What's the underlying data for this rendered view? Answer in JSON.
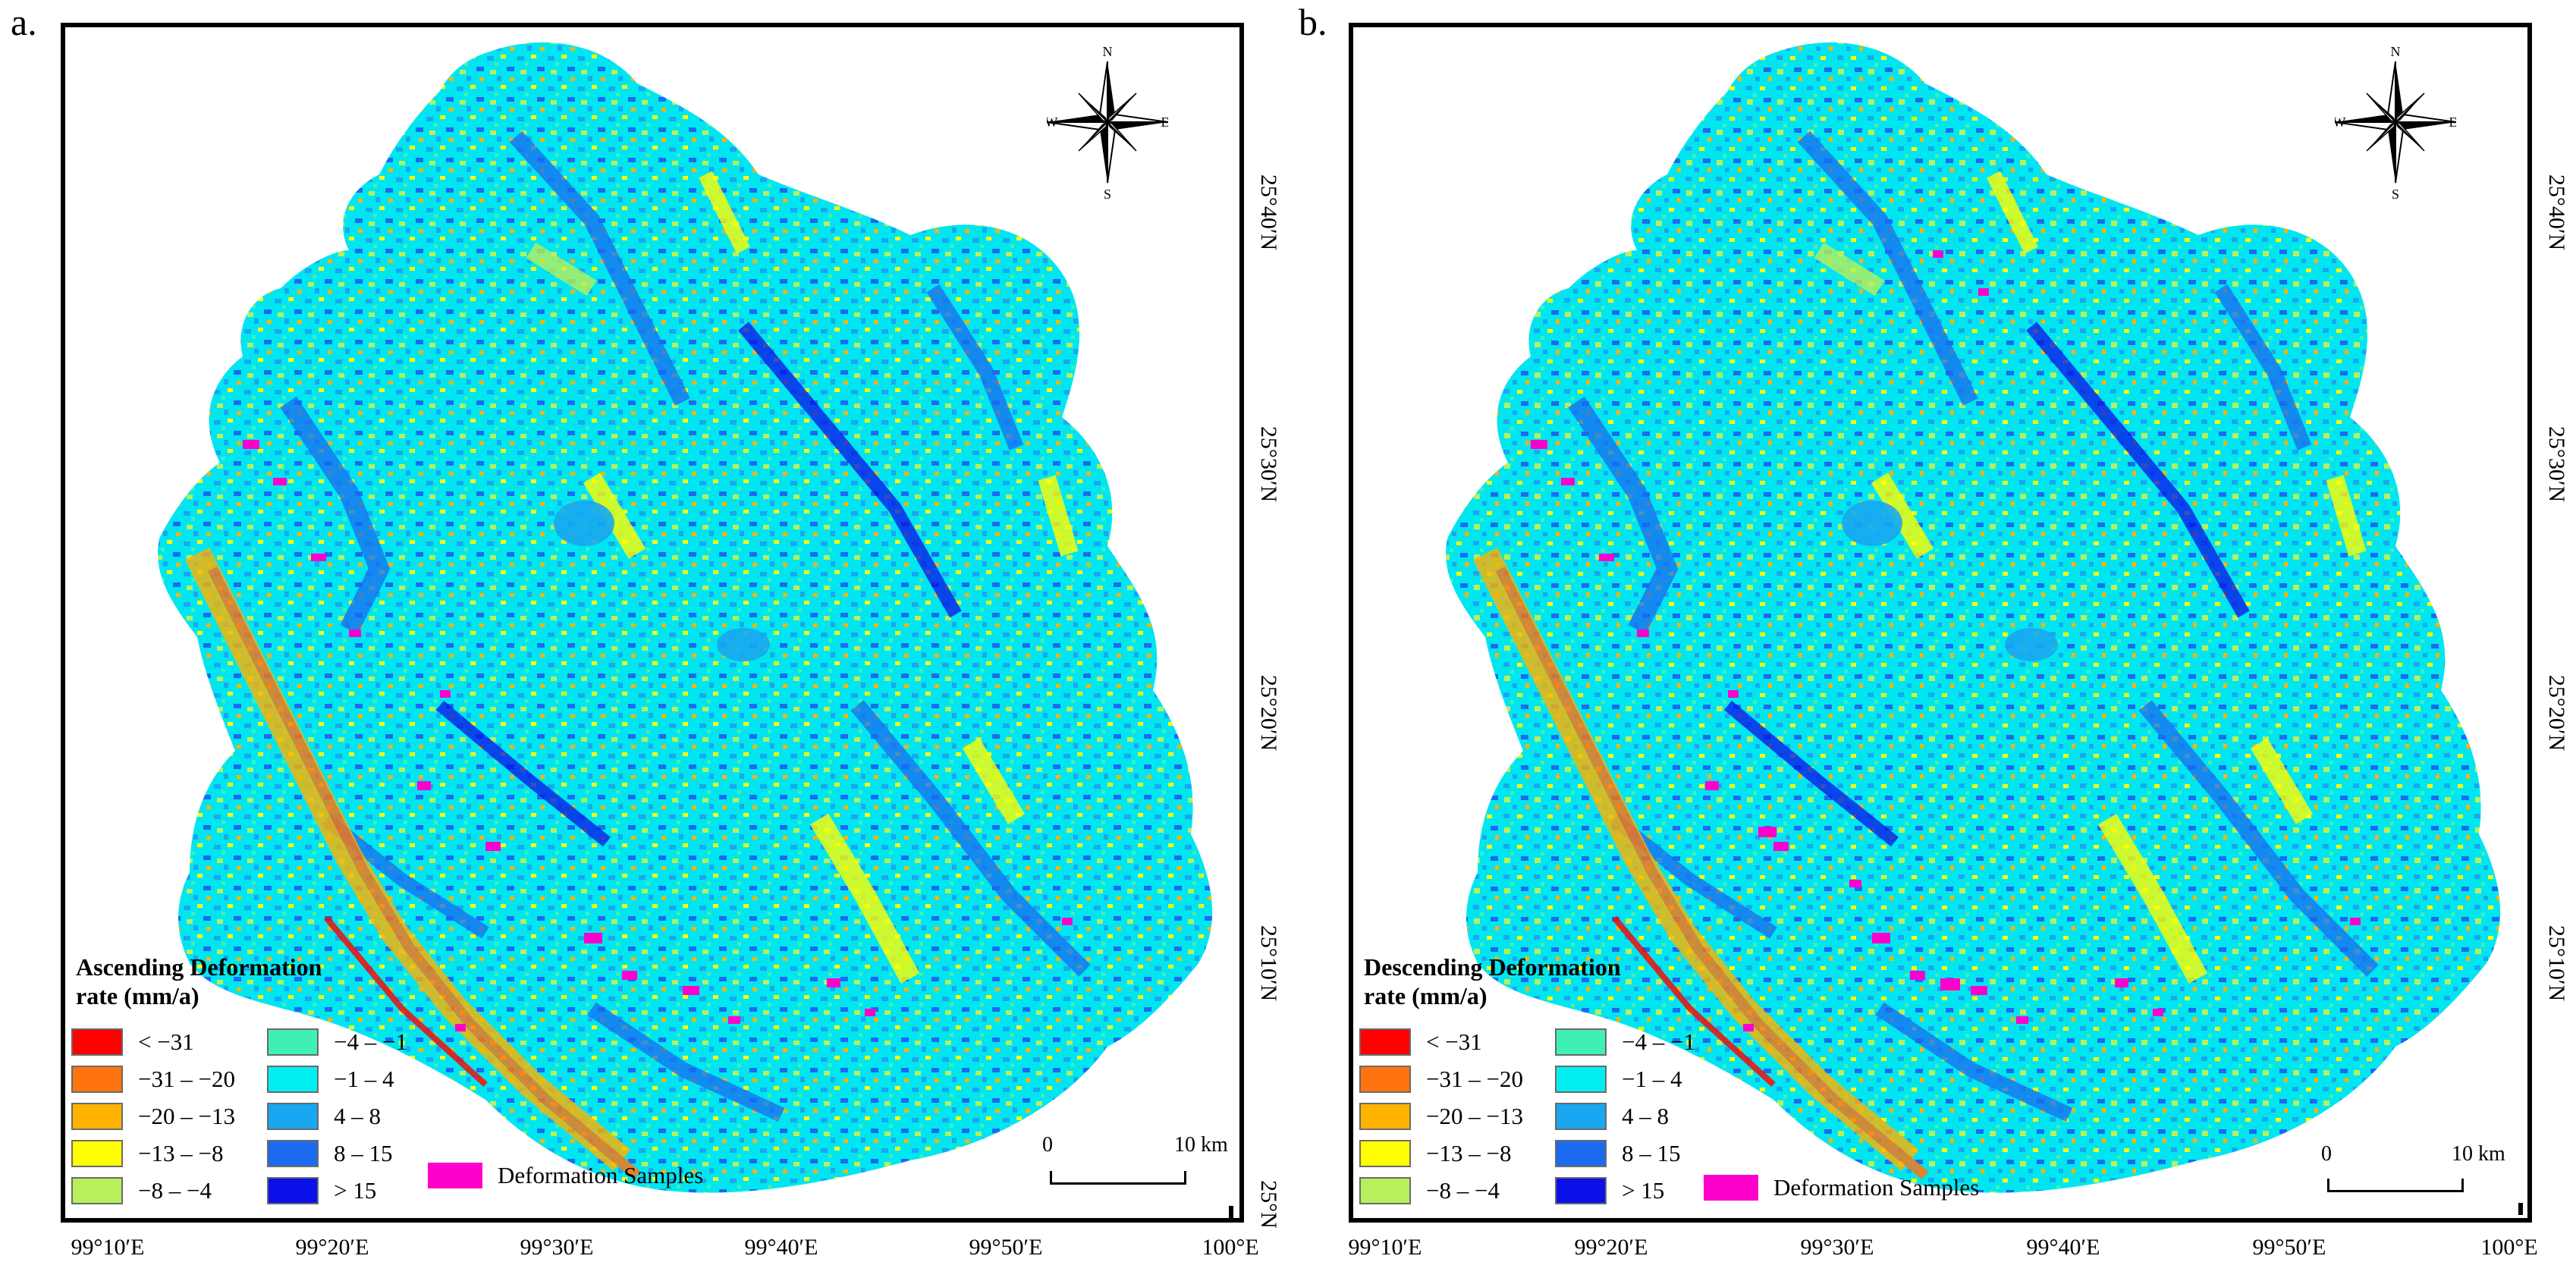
{
  "panels": [
    {
      "label": "a.",
      "legend_title": [
        "Ascending Deformation",
        "rate (mm/a)"
      ],
      "legend_left": [
        {
          "label": "< −31",
          "color": "#ff0000"
        },
        {
          "label": "−31 – −20",
          "color": "#ff7410"
        },
        {
          "label": "−20 – −13",
          "color": "#ffb300"
        },
        {
          "label": "−13 – −8",
          "color": "#ffff00"
        },
        {
          "label": "−8 – −4",
          "color": "#b7f05a"
        }
      ],
      "legend_right": [
        {
          "label": "−4 – −1",
          "color": "#3ff0b2"
        },
        {
          "label": "−1 – 4",
          "color": "#00f0f0"
        },
        {
          "label": "4 – 8",
          "color": "#18a7f0"
        },
        {
          "label": "8 – 15",
          "color": "#1a6bf0"
        },
        {
          "label": "> 15",
          "color": "#0a10e8"
        }
      ],
      "samples": {
        "label": "Deformation Samples",
        "color": "#ff00cc"
      },
      "lon_ticks": [
        "99°10′E",
        "99°20′E",
        "99°30′E",
        "99°40′E",
        "99°50′E",
        "100°E"
      ],
      "lat_ticks": [
        "25°40′N",
        "25°30′N",
        "25°20′N",
        "25°10′N",
        "25°N"
      ],
      "scale": {
        "start": "0",
        "end": "10 km"
      },
      "compass": {
        "n": "N",
        "s": "S",
        "e": "E",
        "w": "W"
      }
    },
    {
      "label": "b.",
      "legend_title": [
        "Descending Deformation",
        "rate (mm/a)"
      ],
      "legend_left": [
        {
          "label": "< −31",
          "color": "#ff0000"
        },
        {
          "label": "−31 – −20",
          "color": "#ff7410"
        },
        {
          "label": "−20 – −13",
          "color": "#ffb300"
        },
        {
          "label": "−13 – −8",
          "color": "#ffff00"
        },
        {
          "label": "−8 – −4",
          "color": "#b7f05a"
        }
      ],
      "legend_right": [
        {
          "label": "−4 – −1",
          "color": "#3ff0b2"
        },
        {
          "label": "−1 – 4",
          "color": "#00f0f0"
        },
        {
          "label": "4 – 8",
          "color": "#18a7f0"
        },
        {
          "label": "8 – 15",
          "color": "#1a6bf0"
        },
        {
          "label": "> 15",
          "color": "#0a10e8"
        }
      ],
      "samples": {
        "label": "Deformation Samples",
        "color": "#ff00cc"
      },
      "lon_ticks": [
        "99°10′E",
        "99°20′E",
        "99°30′E",
        "99°40′E",
        "99°50′E",
        "100°E"
      ],
      "lat_ticks": [
        "25°40′N",
        "25°30′N",
        "25°20′N",
        "25°10′N",
        "25°N"
      ],
      "scale": {
        "start": "0",
        "end": "10 km"
      },
      "compass": {
        "n": "N",
        "s": "S",
        "e": "E",
        "w": "W"
      }
    }
  ]
}
